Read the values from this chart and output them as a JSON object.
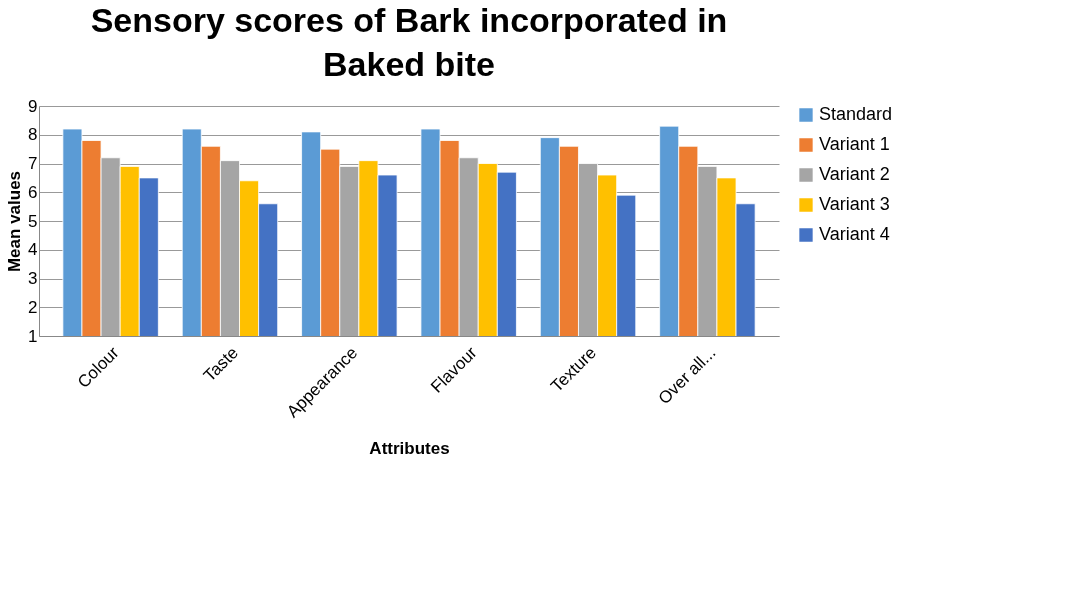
{
  "chart_data": {
    "type": "bar",
    "title": "Sensory scores of Bark incorporated in Baked bite",
    "xlabel": "Attributes",
    "ylabel": "Mean values",
    "categories": [
      "Colour",
      "Taste",
      "Appearance",
      "Flavour",
      "Texture",
      "Over all..."
    ],
    "series": [
      {
        "name": "Standard",
        "color": "#5b9bd5",
        "values": [
          8.2,
          8.2,
          8.1,
          8.2,
          7.9,
          8.3
        ]
      },
      {
        "name": "Variant 1",
        "color": "#ed7d31",
        "values": [
          7.8,
          7.6,
          7.5,
          7.8,
          7.6,
          7.6
        ]
      },
      {
        "name": "Variant 2",
        "color": "#a5a5a5",
        "values": [
          7.2,
          7.1,
          6.9,
          7.2,
          7.0,
          6.9
        ]
      },
      {
        "name": "Variant 3",
        "color": "#ffc000",
        "values": [
          6.9,
          6.4,
          7.1,
          7.0,
          6.6,
          6.5
        ]
      },
      {
        "name": "Variant 4",
        "color": "#4472c4",
        "values": [
          6.5,
          5.6,
          6.6,
          6.7,
          5.9,
          5.6
        ]
      }
    ],
    "ylim": [
      1,
      9
    ],
    "yticks": [
      1,
      2,
      3,
      4,
      5,
      6,
      7,
      8,
      9
    ],
    "grid": "y",
    "legend": "right"
  }
}
